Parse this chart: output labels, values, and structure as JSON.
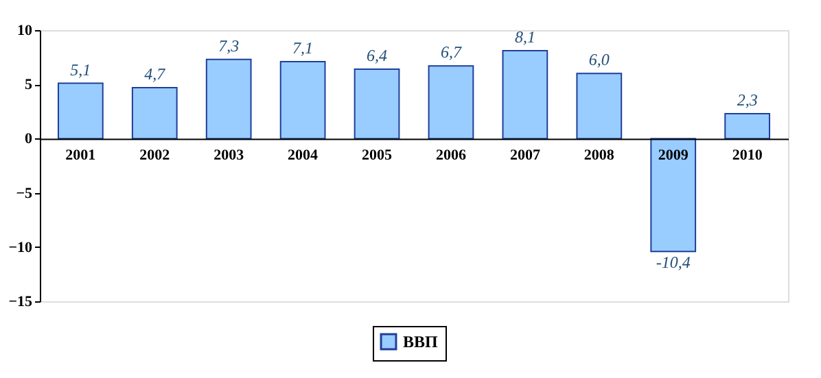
{
  "chart_data": {
    "type": "bar",
    "categories": [
      "2001",
      "2002",
      "2003",
      "2004",
      "2005",
      "2006",
      "2007",
      "2008",
      "2009",
      "2010"
    ],
    "series": [
      {
        "name": "ВВП",
        "color": "#99ccff",
        "values": [
          5.1,
          4.7,
          7.3,
          7.1,
          6.4,
          6.7,
          8.1,
          6.0,
          -10.4,
          2.3
        ],
        "value_labels": [
          "5,1",
          "4,7",
          "7,3",
          "7,1",
          "6,4",
          "6,7",
          "8,1",
          "6,0",
          "-10,4",
          "2,3"
        ]
      }
    ],
    "ylim": [
      -15,
      10
    ],
    "yticks": [
      -15,
      -10,
      -5,
      0,
      5,
      10
    ],
    "grid": false,
    "legend": "bottom"
  }
}
